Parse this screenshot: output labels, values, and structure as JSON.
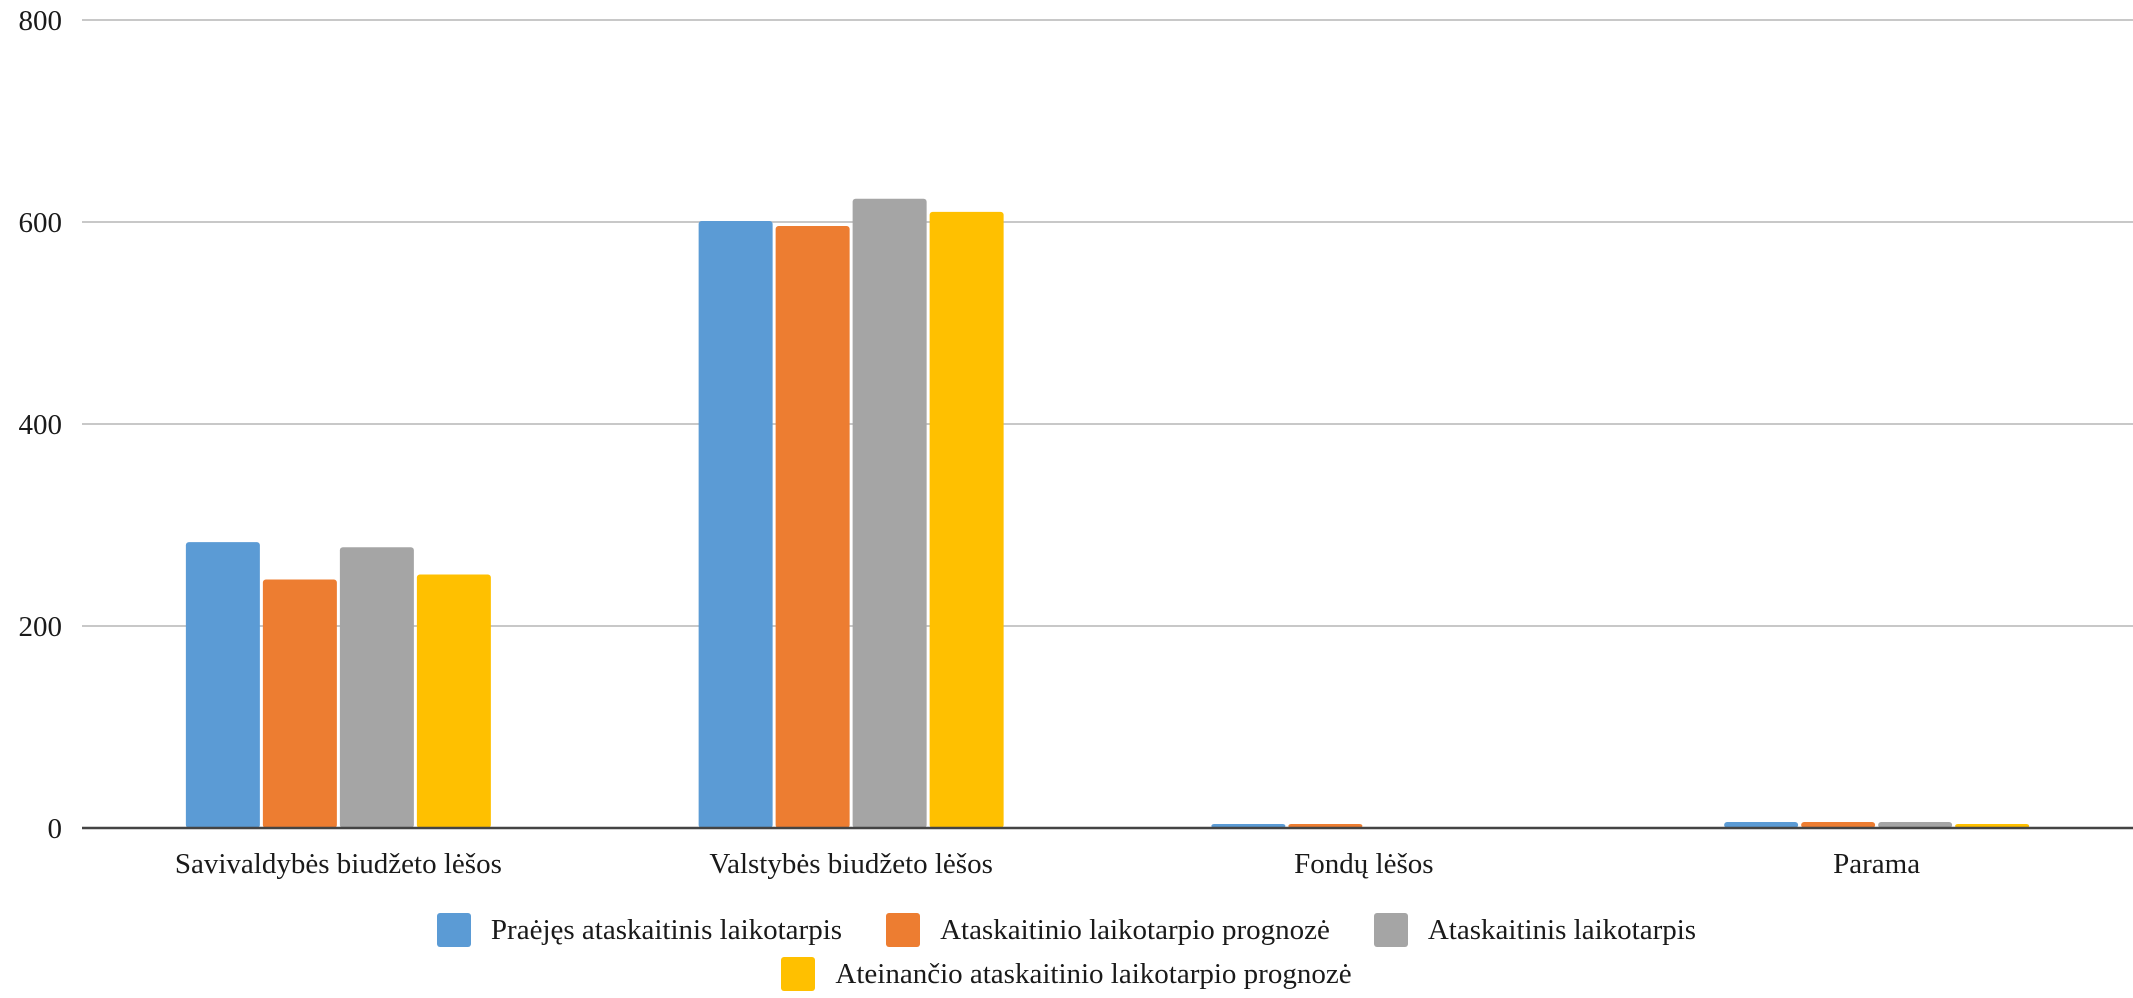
{
  "chart_data": {
    "type": "bar",
    "title": "",
    "xlabel": "",
    "ylabel": "",
    "ylim": [
      0,
      800
    ],
    "yticks": [
      0,
      200,
      400,
      600,
      800
    ],
    "grid": true,
    "legend_position": "bottom",
    "categories": [
      "Savivaldybės biudžeto lėšos",
      "Valstybės biudžeto lėšos",
      "Fondų lėšos",
      "Parama"
    ],
    "series": [
      {
        "name": "Praėjęs ataskaitinis laikotarpis",
        "color": "#5B9BD5",
        "values": [
          283,
          601,
          4,
          6
        ]
      },
      {
        "name": "Ataskaitinio laikotarpio prognozė",
        "color": "#ED7D31",
        "values": [
          246,
          596,
          4,
          6
        ]
      },
      {
        "name": "Ataskaitinis laikotarpis",
        "color": "#A5A5A5",
        "values": [
          278,
          623,
          0,
          6
        ]
      },
      {
        "name": "Ateinančio ataskaitinio laikotarpio prognozė",
        "color": "#FFC000",
        "values": [
          251,
          610,
          0,
          4
        ]
      }
    ]
  }
}
